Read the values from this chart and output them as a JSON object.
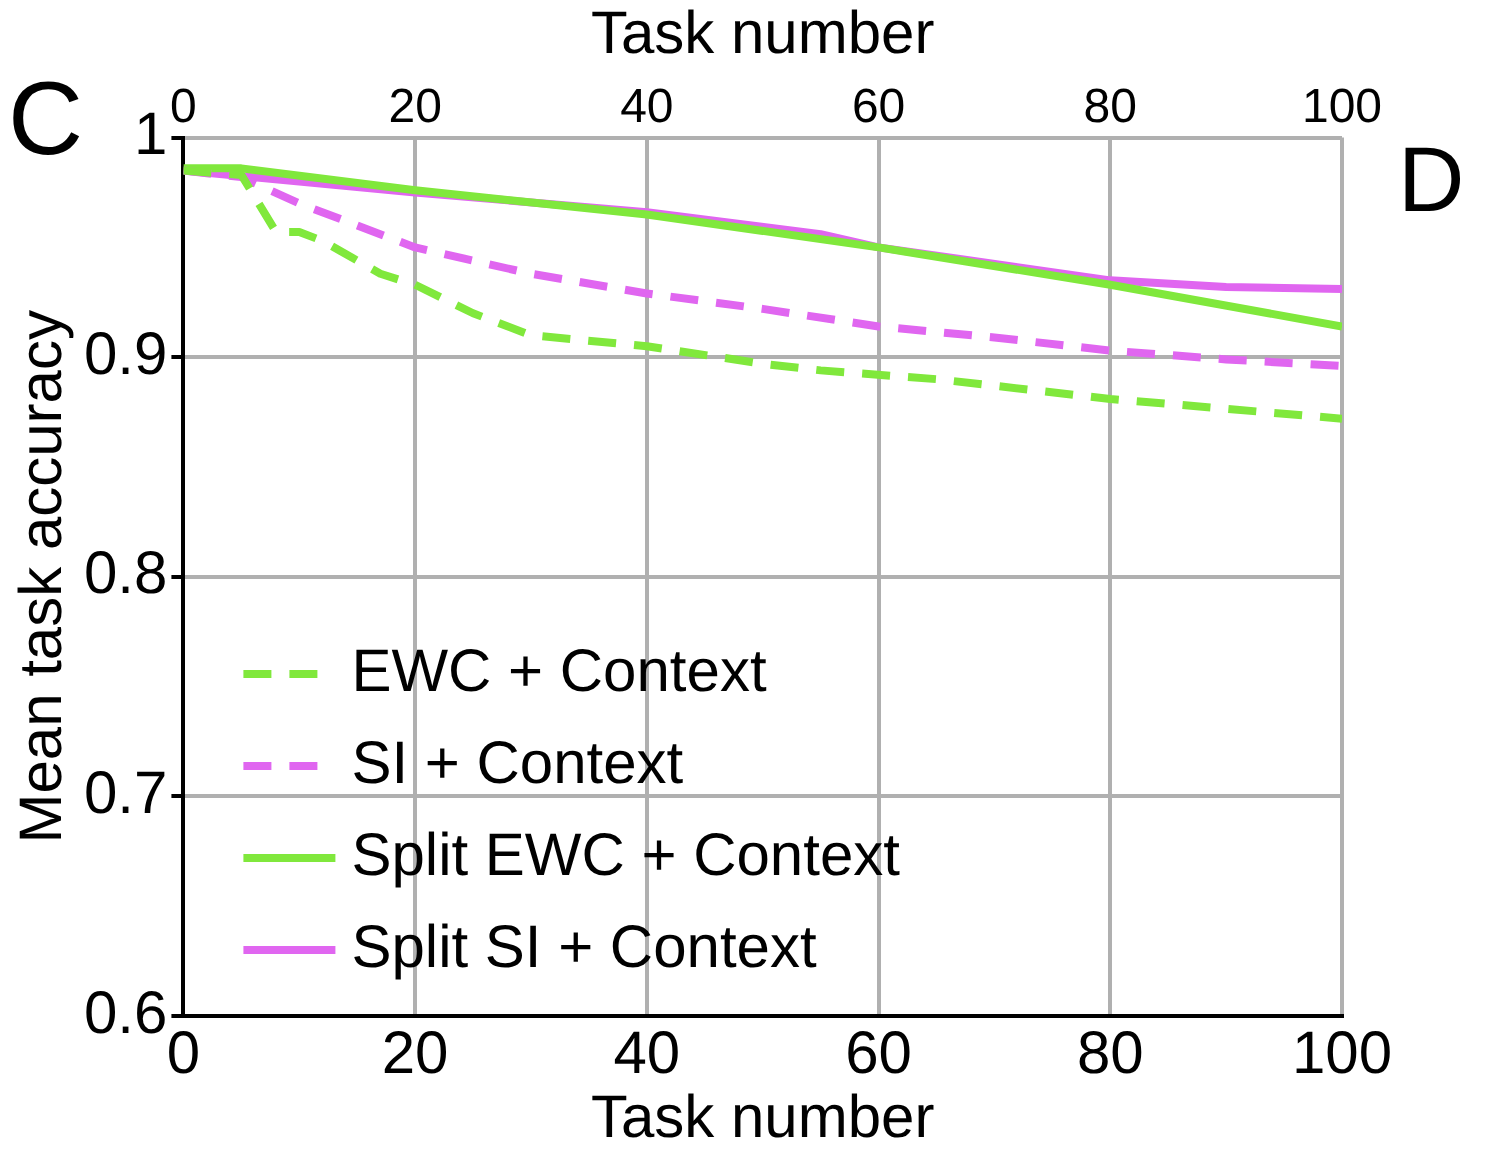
{
  "chart_data": {
    "type": "line",
    "xlabel": "Task number",
    "ylabel": "Mean task accuracy",
    "x2label": "Task number",
    "xlim": [
      0,
      100
    ],
    "xticks": [
      0,
      20,
      40,
      60,
      80,
      100
    ],
    "x2lim": [
      0,
      100
    ],
    "x2ticks": [
      0,
      20,
      40,
      60,
      80,
      100
    ],
    "ylim": [
      0.6,
      1
    ],
    "yticks": [
      0.6,
      0.7,
      0.8,
      0.9,
      1
    ],
    "grid": true,
    "legend": "bottom left",
    "marker": "none",
    "annotations": [
      "C",
      "D"
    ],
    "series": [
      {
        "name": "EWC + Context",
        "color": "#80e83c",
        "line_style": "dashed",
        "x": [
          0,
          5,
          8,
          10,
          12,
          17,
          20,
          25,
          30,
          40,
          50,
          55,
          65,
          80,
          100
        ],
        "values": [
          0.985,
          0.983,
          0.957,
          0.957,
          0.953,
          0.938,
          0.933,
          0.92,
          0.91,
          0.905,
          0.897,
          0.894,
          0.89,
          0.881,
          0.872
        ]
      },
      {
        "name": "SI + Context",
        "color": "#e066f0",
        "line_style": "dashed",
        "x": [
          0,
          5,
          10,
          20,
          30,
          40,
          50,
          60,
          70,
          80,
          90,
          100
        ],
        "values": [
          0.985,
          0.982,
          0.97,
          0.95,
          0.938,
          0.929,
          0.922,
          0.914,
          0.909,
          0.903,
          0.899,
          0.896
        ]
      },
      {
        "name": "Split EWC + Context",
        "color": "#80e83c",
        "line_style": "solid",
        "x": [
          0,
          5,
          20,
          40,
          60,
          80,
          100
        ],
        "values": [
          0.986,
          0.986,
          0.976,
          0.965,
          0.95,
          0.933,
          0.914
        ]
      },
      {
        "name": "Split SI + Context",
        "color": "#e066f0",
        "line_style": "solid",
        "x": [
          0,
          20,
          40,
          55,
          60,
          80,
          90,
          100
        ],
        "values": [
          0.985,
          0.975,
          0.966,
          0.956,
          0.95,
          0.935,
          0.932,
          0.931
        ]
      }
    ]
  }
}
